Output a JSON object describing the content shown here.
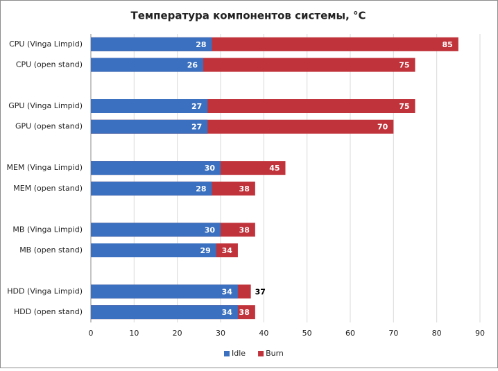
{
  "chart_data": {
    "type": "bar",
    "orientation": "horizontal",
    "barmode": "overlay",
    "title": "Температура компонентов системы, °C",
    "categories": [
      "CPU (Vinga Limpid)",
      "CPU (open stand)",
      null,
      "GPU (Vinga Limpid)",
      "GPU (open stand)",
      null,
      "MEM (Vinga Limpid)",
      "MEM (open stand)",
      null,
      "MB (Vinga Limpid)",
      "MB (open stand)",
      null,
      "HDD (Vinga Limpid)",
      "HDD (open stand)"
    ],
    "series": [
      {
        "name": "Burn",
        "color": "#c0333b",
        "values": [
          85,
          75,
          null,
          75,
          70,
          null,
          45,
          38,
          null,
          38,
          34,
          null,
          37,
          38
        ]
      },
      {
        "name": "Idle",
        "color": "#3a70bf",
        "values": [
          28,
          26,
          null,
          27,
          27,
          null,
          30,
          28,
          null,
          30,
          29,
          null,
          34,
          34
        ]
      }
    ],
    "xlim": [
      0,
      90
    ],
    "xticks": [
      0,
      10,
      20,
      30,
      40,
      50,
      60,
      70,
      80,
      90
    ],
    "grid": true,
    "legend": "bottom"
  }
}
